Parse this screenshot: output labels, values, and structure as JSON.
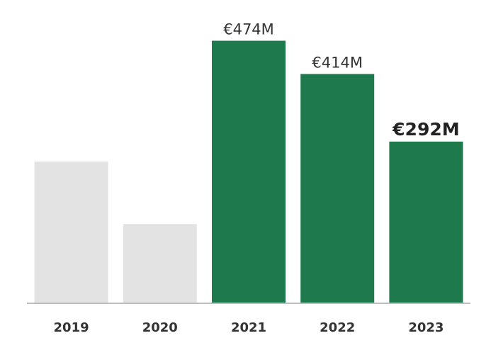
{
  "chart_data": {
    "type": "bar",
    "categories": [
      "2019",
      "2020",
      "2021",
      "2022",
      "2023"
    ],
    "values": [
      256,
      143,
      474,
      414,
      292
    ],
    "data_labels": [
      "",
      "",
      "€474M",
      "€414M",
      "€292M"
    ],
    "emphasized_labels": [
      false,
      false,
      false,
      false,
      true
    ],
    "ylim": [
      0,
      490
    ],
    "grid": false,
    "legend": "none",
    "colors": {
      "muted": "#e3e3e3",
      "highlight": "#1e7a4c",
      "baseline": "#bdbdbd"
    },
    "bar_colors": [
      "muted",
      "muted",
      "highlight",
      "highlight",
      "highlight"
    ]
  }
}
